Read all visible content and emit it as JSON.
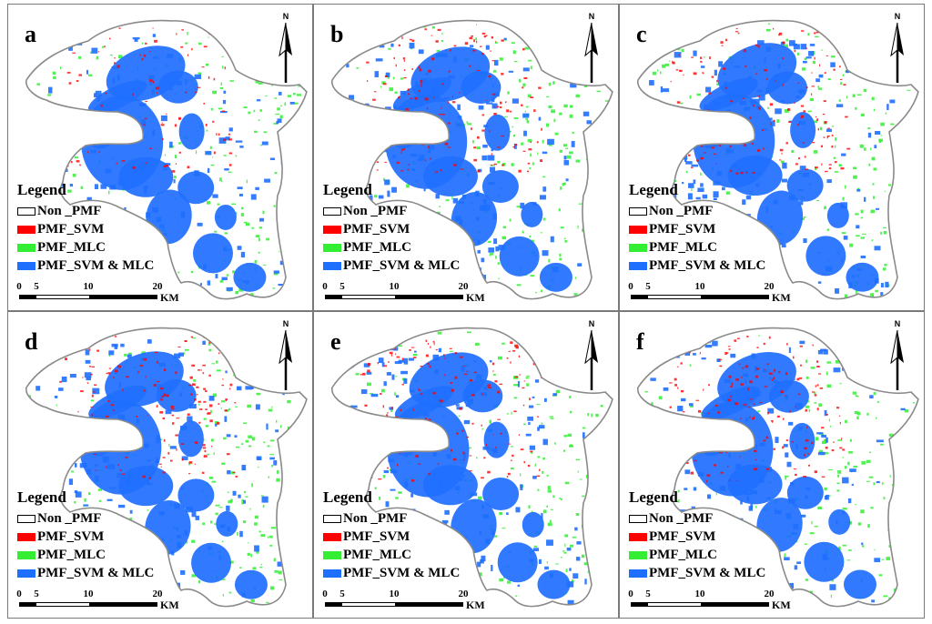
{
  "panels": [
    {
      "label": "a"
    },
    {
      "label": "b"
    },
    {
      "label": "c"
    },
    {
      "label": "d"
    },
    {
      "label": "e"
    },
    {
      "label": "f"
    }
  ],
  "legend": {
    "title": "Legend",
    "items": [
      {
        "label": "Non _PMF",
        "color": "#ffffff",
        "outline": "#000000"
      },
      {
        "label": "PMF_SVM",
        "color": "#ff0000"
      },
      {
        "label": "PMF_MLC",
        "color": "#33ee33"
      },
      {
        "label": "PMF_SVM & MLC",
        "color": "#1f6fff"
      }
    ]
  },
  "scale_bar": {
    "ticks": [
      "0",
      "5",
      "10",
      "20"
    ],
    "unit": "KM"
  },
  "north_arrow": {
    "label": "N",
    "icon": "north-arrow-icon"
  },
  "colors": {
    "non_pmf": "#ffffff",
    "pmf_svm": "#ff0000",
    "pmf_mlc": "#33ee33",
    "pmf_svm_mlc": "#1f6fff",
    "boundary": "#8a8a8a"
  }
}
